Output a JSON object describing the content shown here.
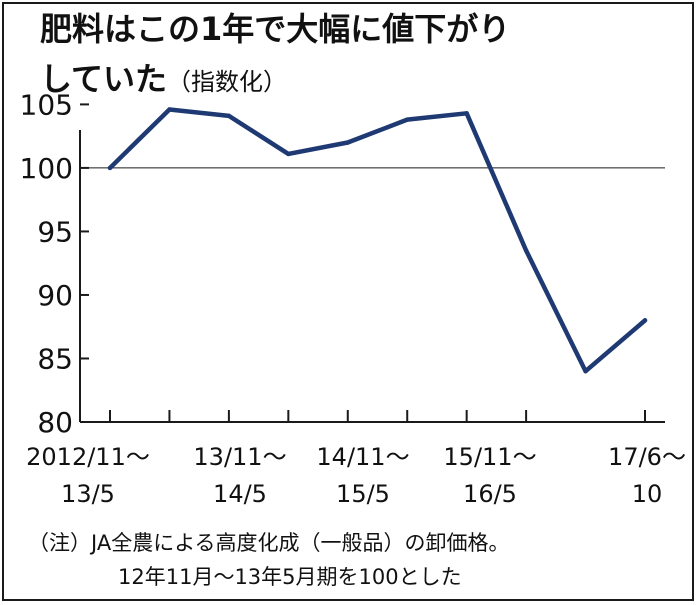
{
  "chart_data": {
    "type": "line",
    "title_lines": [
      "肥料はこの1年で大幅に値下がり",
      "していた"
    ],
    "title_suffix": "（指数化）",
    "x": [
      "2012/11～13/5",
      "",
      "13/11～14/5",
      "",
      "14/11～15/5",
      "",
      "15/11～16/5",
      "",
      "",
      "17/6～10"
    ],
    "x_tick_labels": [
      {
        "index": 0,
        "lines": [
          "2012/11～",
          "13/5"
        ]
      },
      {
        "index": 2,
        "lines": [
          "13/11～",
          "14/5"
        ]
      },
      {
        "index": 4,
        "lines": [
          "14/11～",
          "15/5"
        ]
      },
      {
        "index": 6,
        "lines": [
          "15/11～",
          "16/5"
        ]
      },
      {
        "index": 9,
        "lines": [
          "17/6～",
          "10"
        ]
      }
    ],
    "series": [
      {
        "values": [
          100,
          104.6,
          104.1,
          101.1,
          102,
          103.8,
          104.3,
          93.5,
          84,
          88
        ]
      }
    ],
    "yticks": [
      "105",
      "100",
      "95",
      "90",
      "85",
      "80"
    ],
    "ylim": [
      80,
      107
    ],
    "reference_line": 100,
    "grid": false,
    "line_color": "#1f3a73",
    "note_lines": [
      "（注）JA全農による高度化成（一般品）の卸価格。",
      "12年11月～13年5月期を100とした"
    ]
  }
}
